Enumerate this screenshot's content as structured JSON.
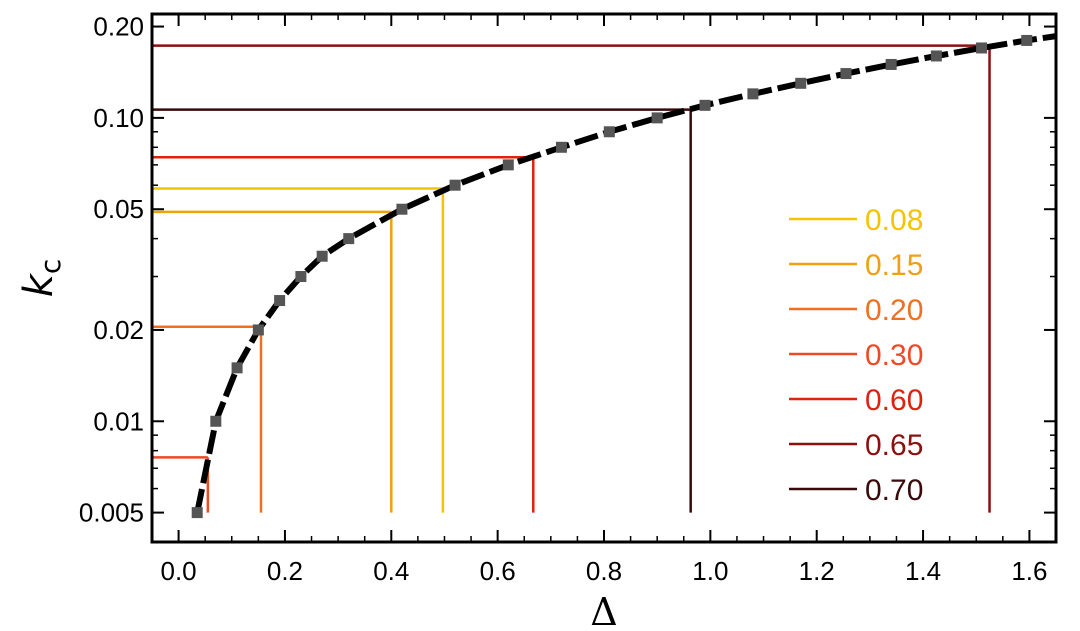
{
  "chart_data": {
    "type": "line",
    "xlabel": "Δ",
    "ylabel": "k",
    "ylabel_subscript": "c",
    "xlim": [
      -0.05,
      1.65
    ],
    "ylim": [
      0.004,
      0.22
    ],
    "y_scale": "log",
    "x_ticks": [
      0.0,
      0.2,
      0.4,
      0.6,
      0.8,
      1.0,
      1.2,
      1.4,
      1.6
    ],
    "x_tick_labels": [
      "0.0",
      "0.2",
      "0.4",
      "0.6",
      "0.8",
      "1.0",
      "1.2",
      "1.4",
      "1.6"
    ],
    "y_ticks": [
      0.005,
      0.01,
      0.02,
      0.05,
      0.1,
      0.2
    ],
    "y_tick_labels": [
      "0.005",
      "0.01",
      "0.02",
      "0.05",
      "0.10",
      "0.20"
    ],
    "legend_placement": "lower-right",
    "curve": {
      "color": "#000000",
      "marker_color": "#555555",
      "points": [
        {
          "x": 0.035,
          "y": 0.005
        },
        {
          "x": 0.07,
          "y": 0.01
        },
        {
          "x": 0.11,
          "y": 0.015
        },
        {
          "x": 0.15,
          "y": 0.02
        },
        {
          "x": 0.19,
          "y": 0.025
        },
        {
          "x": 0.23,
          "y": 0.03
        },
        {
          "x": 0.27,
          "y": 0.035
        },
        {
          "x": 0.32,
          "y": 0.04
        },
        {
          "x": 0.42,
          "y": 0.05
        },
        {
          "x": 0.52,
          "y": 0.06
        },
        {
          "x": 0.62,
          "y": 0.07
        },
        {
          "x": 0.72,
          "y": 0.08
        },
        {
          "x": 0.81,
          "y": 0.09
        },
        {
          "x": 0.9,
          "y": 0.1
        },
        {
          "x": 0.99,
          "y": 0.11
        },
        {
          "x": 1.08,
          "y": 0.12
        },
        {
          "x": 1.17,
          "y": 0.13
        },
        {
          "x": 1.255,
          "y": 0.14
        },
        {
          "x": 1.34,
          "y": 0.15
        },
        {
          "x": 1.425,
          "y": 0.16
        },
        {
          "x": 1.51,
          "y": 0.17
        },
        {
          "x": 1.595,
          "y": 0.18
        }
      ],
      "extend_to": {
        "x": 1.65,
        "y": 0.186
      }
    },
    "thresholds": [
      {
        "name": "0.08",
        "color": "#f5c400",
        "x": 0.497,
        "y": 0.0585
      },
      {
        "name": "0.15",
        "color": "#f0a010",
        "x": 0.4,
        "y": 0.049
      },
      {
        "name": "0.20",
        "color": "#f07020",
        "x": 0.155,
        "y": 0.0205
      },
      {
        "name": "0.30",
        "color": "#f04a25",
        "x": 0.055,
        "y": 0.0076
      },
      {
        "name": "0.60",
        "color": "#dd2211",
        "x": 0.667,
        "y": 0.0742
      },
      {
        "name": "0.65",
        "color": "#8c1010",
        "x": 1.525,
        "y": 0.173
      },
      {
        "name": "0.70",
        "color": "#3a0a0a",
        "x": 0.963,
        "y": 0.1065
      }
    ]
  }
}
